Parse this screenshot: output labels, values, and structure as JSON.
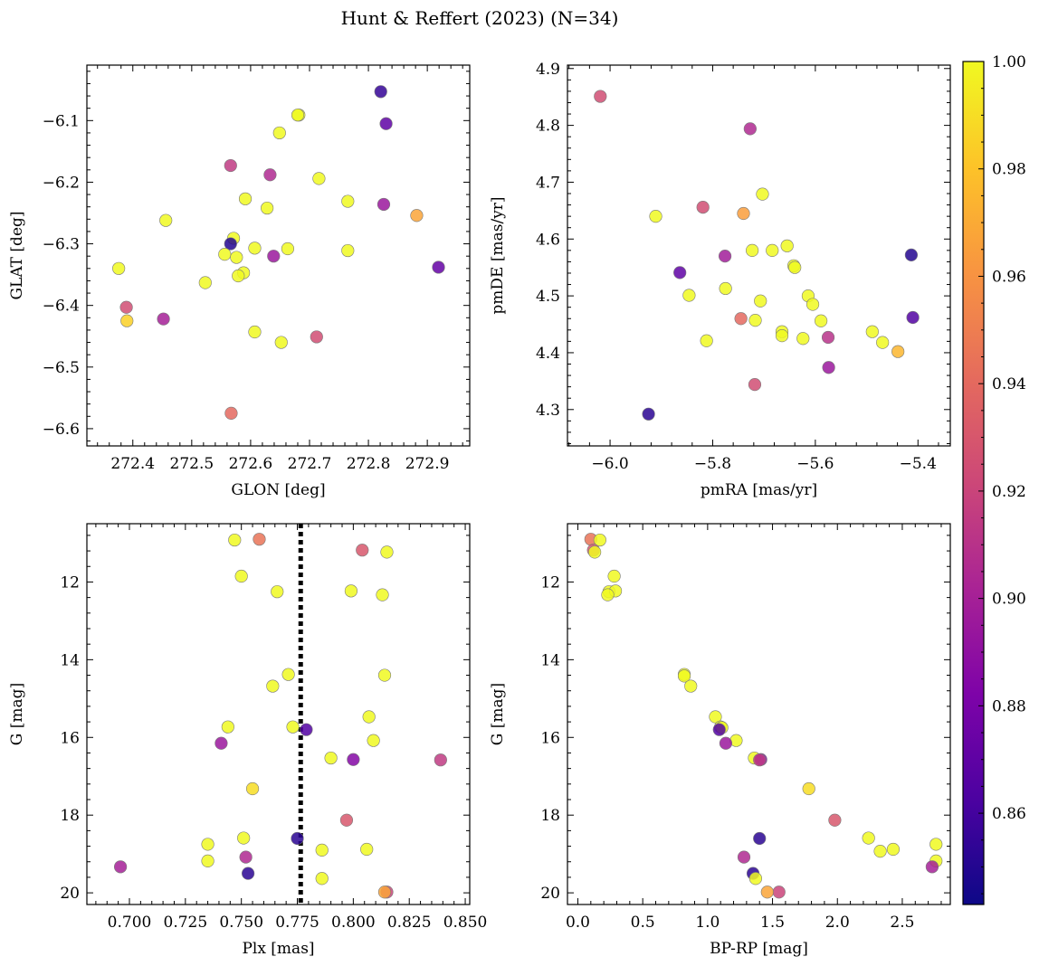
{
  "figure": {
    "title": "Hunt & Reffert (2023) (N=34)"
  },
  "colorbar": {
    "colormap": "plasma",
    "range": [
      0.843,
      1.0
    ],
    "ticks": [
      "0.86",
      "0.88",
      "0.90",
      "0.92",
      "0.94",
      "0.96",
      "0.98",
      "1.00"
    ],
    "tick_values": [
      0.86,
      0.88,
      0.9,
      0.92,
      0.94,
      0.96,
      0.98,
      1.0
    ]
  },
  "chart_data": [
    {
      "type": "scatter",
      "xlabel": "GLON [deg]",
      "ylabel": "GLAT [deg]",
      "xlim": [
        272.322,
        272.972
      ],
      "ylim": [
        -6.628,
        -6.01
      ],
      "invert_y": false,
      "xticks": [
        "272.4",
        "272.5",
        "272.6",
        "272.7",
        "272.8",
        "272.9"
      ],
      "xtick_values": [
        272.4,
        272.5,
        272.6,
        272.7,
        272.8,
        272.9
      ],
      "yticks": [
        "−6.6",
        "−6.5",
        "−6.4",
        "−6.3",
        "−6.2",
        "−6.1"
      ],
      "ytick_values": [
        -6.6,
        -6.5,
        -6.4,
        -6.3,
        -6.2,
        -6.1
      ],
      "points": [
        {
          "x": 272.821,
          "y": -6.053,
          "c": 0.855
        },
        {
          "x": 272.682,
          "y": -6.091,
          "c": 1.0
        },
        {
          "x": 272.83,
          "y": -6.105,
          "c": 0.87
        },
        {
          "x": 272.649,
          "y": -6.12,
          "c": 1.0
        },
        {
          "x": 272.566,
          "y": -6.173,
          "c": 0.915
        },
        {
          "x": 272.633,
          "y": -6.188,
          "c": 0.905
        },
        {
          "x": 272.716,
          "y": -6.194,
          "c": 1.0
        },
        {
          "x": 272.591,
          "y": -6.227,
          "c": 1.0
        },
        {
          "x": 272.765,
          "y": -6.231,
          "c": 1.0
        },
        {
          "x": 272.826,
          "y": -6.236,
          "c": 0.895
        },
        {
          "x": 272.628,
          "y": -6.242,
          "c": 1.0
        },
        {
          "x": 272.882,
          "y": -6.254,
          "c": 0.968
        },
        {
          "x": 272.456,
          "y": -6.262,
          "c": 1.0
        },
        {
          "x": 272.571,
          "y": -6.291,
          "c": 1.0
        },
        {
          "x": 272.566,
          "y": -6.3,
          "c": 0.85
        },
        {
          "x": 272.607,
          "y": -6.307,
          "c": 1.0
        },
        {
          "x": 272.663,
          "y": -6.308,
          "c": 1.0
        },
        {
          "x": 272.765,
          "y": -6.311,
          "c": 1.0
        },
        {
          "x": 272.556,
          "y": -6.317,
          "c": 1.0
        },
        {
          "x": 272.639,
          "y": -6.32,
          "c": 0.895
        },
        {
          "x": 272.576,
          "y": -6.322,
          "c": 1.0
        },
        {
          "x": 272.919,
          "y": -6.338,
          "c": 0.872
        },
        {
          "x": 272.376,
          "y": -6.34,
          "c": 1.0
        },
        {
          "x": 272.588,
          "y": -6.347,
          "c": 1.0
        },
        {
          "x": 272.579,
          "y": -6.352,
          "c": 1.0
        },
        {
          "x": 272.523,
          "y": -6.363,
          "c": 1.0
        },
        {
          "x": 272.389,
          "y": -6.403,
          "c": 0.925
        },
        {
          "x": 272.452,
          "y": -6.422,
          "c": 0.9
        },
        {
          "x": 272.39,
          "y": -6.425,
          "c": 0.985
        },
        {
          "x": 272.607,
          "y": -6.443,
          "c": 1.0
        },
        {
          "x": 272.712,
          "y": -6.451,
          "c": 0.925
        },
        {
          "x": 272.652,
          "y": -6.46,
          "c": 1.0
        },
        {
          "x": 272.567,
          "y": -6.575,
          "c": 0.94
        },
        {
          "x": 272.68,
          "y": -6.091,
          "c": 1.0
        }
      ]
    },
    {
      "type": "scatter",
      "xlabel": "pmRA [mas/yr]",
      "ylabel": "pmDE [mas/yr]",
      "xlim": [
        -6.083,
        -5.337
      ],
      "ylim": [
        4.236,
        4.906
      ],
      "invert_y": false,
      "xticks": [
        "−6.0",
        "−5.8",
        "−5.6",
        "−5.4"
      ],
      "xtick_values": [
        -6.0,
        -5.8,
        -5.6,
        -5.4
      ],
      "yticks": [
        "4.3",
        "4.4",
        "4.5",
        "4.6",
        "4.7",
        "4.8",
        "4.9"
      ],
      "ytick_values": [
        4.3,
        4.4,
        4.5,
        4.6,
        4.7,
        4.8,
        4.9
      ],
      "points": [
        {
          "x": -6.019,
          "y": 4.851,
          "c": 0.925
        },
        {
          "x": -5.727,
          "y": 4.794,
          "c": 0.905
        },
        {
          "x": -5.703,
          "y": 4.679,
          "c": 1.0
        },
        {
          "x": -5.819,
          "y": 4.656,
          "c": 0.925
        },
        {
          "x": -5.74,
          "y": 4.645,
          "c": 0.965
        },
        {
          "x": -5.911,
          "y": 4.64,
          "c": 1.0
        },
        {
          "x": -5.723,
          "y": 4.58,
          "c": 1.0
        },
        {
          "x": -5.684,
          "y": 4.58,
          "c": 1.0
        },
        {
          "x": -5.655,
          "y": 4.588,
          "c": 1.0
        },
        {
          "x": -5.413,
          "y": 4.572,
          "c": 0.85
        },
        {
          "x": -5.776,
          "y": 4.57,
          "c": 0.898
        },
        {
          "x": -5.642,
          "y": 4.553,
          "c": 1.0
        },
        {
          "x": -5.64,
          "y": 4.55,
          "c": 1.0
        },
        {
          "x": -5.864,
          "y": 4.541,
          "c": 0.87
        },
        {
          "x": -5.775,
          "y": 4.513,
          "c": 1.0
        },
        {
          "x": -5.846,
          "y": 4.501,
          "c": 1.0
        },
        {
          "x": -5.614,
          "y": 4.5,
          "c": 1.0
        },
        {
          "x": -5.707,
          "y": 4.491,
          "c": 1.0
        },
        {
          "x": -5.605,
          "y": 4.485,
          "c": 1.0
        },
        {
          "x": -5.41,
          "y": 4.462,
          "c": 0.865
        },
        {
          "x": -5.745,
          "y": 4.46,
          "c": 0.94
        },
        {
          "x": -5.717,
          "y": 4.457,
          "c": 1.0
        },
        {
          "x": -5.589,
          "y": 4.456,
          "c": 1.0
        },
        {
          "x": -5.665,
          "y": 4.437,
          "c": 1.0
        },
        {
          "x": -5.489,
          "y": 4.437,
          "c": 1.0
        },
        {
          "x": -5.665,
          "y": 4.43,
          "c": 1.0
        },
        {
          "x": -5.624,
          "y": 4.425,
          "c": 1.0
        },
        {
          "x": -5.575,
          "y": 4.427,
          "c": 0.91
        },
        {
          "x": -5.812,
          "y": 4.421,
          "c": 1.0
        },
        {
          "x": -5.469,
          "y": 4.418,
          "c": 1.0
        },
        {
          "x": -5.439,
          "y": 4.402,
          "c": 0.975
        },
        {
          "x": -5.574,
          "y": 4.374,
          "c": 0.895
        },
        {
          "x": -5.718,
          "y": 4.344,
          "c": 0.925
        },
        {
          "x": -5.925,
          "y": 4.292,
          "c": 0.852
        }
      ]
    },
    {
      "type": "scatter",
      "xlabel": "Plx [mas]",
      "ylabel": "G [mag]",
      "xlim": [
        0.681,
        0.852
      ],
      "ylim": [
        20.3,
        10.5
      ],
      "invert_y": true,
      "xticks": [
        "0.700",
        "0.725",
        "0.750",
        "0.775",
        "0.800",
        "0.825",
        "0.850"
      ],
      "xtick_values": [
        0.7,
        0.725,
        0.75,
        0.775,
        0.8,
        0.825,
        0.85
      ],
      "yticks": [
        "12",
        "14",
        "16",
        "18",
        "20"
      ],
      "ytick_values": [
        12,
        14,
        16,
        18,
        20
      ],
      "vline": {
        "x": 0.7765,
        "style": "dotted",
        "color": "#000000"
      },
      "points": [
        {
          "x": 0.747,
          "y": 10.92,
          "c": 1.0
        },
        {
          "x": 0.758,
          "y": 10.9,
          "c": 0.945
        },
        {
          "x": 0.804,
          "y": 11.18,
          "c": 0.93
        },
        {
          "x": 0.815,
          "y": 11.23,
          "c": 1.0
        },
        {
          "x": 0.75,
          "y": 11.85,
          "c": 1.0
        },
        {
          "x": 0.766,
          "y": 12.25,
          "c": 1.0
        },
        {
          "x": 0.799,
          "y": 12.23,
          "c": 1.0
        },
        {
          "x": 0.813,
          "y": 12.33,
          "c": 1.0
        },
        {
          "x": 0.771,
          "y": 14.38,
          "c": 1.0
        },
        {
          "x": 0.814,
          "y": 14.4,
          "c": 1.0
        },
        {
          "x": 0.764,
          "y": 14.68,
          "c": 1.0
        },
        {
          "x": 0.807,
          "y": 15.47,
          "c": 1.0
        },
        {
          "x": 0.744,
          "y": 15.73,
          "c": 1.0
        },
        {
          "x": 0.773,
          "y": 15.73,
          "c": 1.0
        },
        {
          "x": 0.779,
          "y": 15.8,
          "c": 0.865
        },
        {
          "x": 0.809,
          "y": 16.08,
          "c": 1.0
        },
        {
          "x": 0.741,
          "y": 16.15,
          "c": 0.895
        },
        {
          "x": 0.79,
          "y": 16.53,
          "c": 1.0
        },
        {
          "x": 0.8,
          "y": 16.57,
          "c": 0.885
        },
        {
          "x": 0.839,
          "y": 16.58,
          "c": 0.915
        },
        {
          "x": 0.755,
          "y": 17.32,
          "c": 0.99
        },
        {
          "x": 0.797,
          "y": 18.13,
          "c": 0.93
        },
        {
          "x": 0.751,
          "y": 18.59,
          "c": 1.0
        },
        {
          "x": 0.775,
          "y": 18.6,
          "c": 0.852
        },
        {
          "x": 0.735,
          "y": 18.75,
          "c": 1.0
        },
        {
          "x": 0.786,
          "y": 18.9,
          "c": 1.0
        },
        {
          "x": 0.806,
          "y": 18.88,
          "c": 1.0
        },
        {
          "x": 0.752,
          "y": 19.08,
          "c": 0.905
        },
        {
          "x": 0.735,
          "y": 19.18,
          "c": 1.0
        },
        {
          "x": 0.696,
          "y": 19.33,
          "c": 0.9
        },
        {
          "x": 0.753,
          "y": 19.5,
          "c": 0.852
        },
        {
          "x": 0.786,
          "y": 19.63,
          "c": 1.0
        },
        {
          "x": 0.815,
          "y": 19.98,
          "c": 0.92
        },
        {
          "x": 0.814,
          "y": 19.98,
          "c": 0.968
        }
      ]
    },
    {
      "type": "scatter",
      "xlabel": "BP-RP [mag]",
      "ylabel": "G [mag]",
      "xlim": [
        -0.08,
        2.87
      ],
      "ylim": [
        20.3,
        10.5
      ],
      "invert_y": true,
      "xticks": [
        "0.0",
        "0.5",
        "1.0",
        "1.5",
        "2.0",
        "2.5"
      ],
      "xtick_values": [
        0.0,
        0.5,
        1.0,
        1.5,
        2.0,
        2.5
      ],
      "yticks": [
        "12",
        "14",
        "16",
        "18",
        "20"
      ],
      "ytick_values": [
        12,
        14,
        16,
        18,
        20
      ],
      "points": [
        {
          "x": 0.1,
          "y": 10.9,
          "c": 0.945
        },
        {
          "x": 0.17,
          "y": 10.92,
          "c": 1.0
        },
        {
          "x": 0.12,
          "y": 11.18,
          "c": 0.93
        },
        {
          "x": 0.13,
          "y": 11.23,
          "c": 1.0
        },
        {
          "x": 0.28,
          "y": 11.85,
          "c": 1.0
        },
        {
          "x": 0.24,
          "y": 12.25,
          "c": 1.0
        },
        {
          "x": 0.29,
          "y": 12.23,
          "c": 1.0
        },
        {
          "x": 0.23,
          "y": 12.33,
          "c": 1.0
        },
        {
          "x": 0.82,
          "y": 14.38,
          "c": 1.0
        },
        {
          "x": 0.82,
          "y": 14.42,
          "c": 1.0
        },
        {
          "x": 0.87,
          "y": 14.68,
          "c": 1.0
        },
        {
          "x": 1.06,
          "y": 15.47,
          "c": 1.0
        },
        {
          "x": 1.1,
          "y": 15.73,
          "c": 1.0
        },
        {
          "x": 1.11,
          "y": 15.75,
          "c": 1.0
        },
        {
          "x": 1.09,
          "y": 15.8,
          "c": 0.865
        },
        {
          "x": 1.22,
          "y": 16.08,
          "c": 1.0
        },
        {
          "x": 1.14,
          "y": 16.15,
          "c": 0.895
        },
        {
          "x": 1.36,
          "y": 16.53,
          "c": 1.0
        },
        {
          "x": 1.41,
          "y": 16.57,
          "c": 0.885
        },
        {
          "x": 1.4,
          "y": 16.58,
          "c": 0.915
        },
        {
          "x": 1.78,
          "y": 17.32,
          "c": 0.99
        },
        {
          "x": 1.98,
          "y": 18.13,
          "c": 0.93
        },
        {
          "x": 2.24,
          "y": 18.59,
          "c": 1.0
        },
        {
          "x": 1.4,
          "y": 18.6,
          "c": 0.852
        },
        {
          "x": 2.76,
          "y": 18.75,
          "c": 1.0
        },
        {
          "x": 2.33,
          "y": 18.93,
          "c": 1.0
        },
        {
          "x": 2.43,
          "y": 18.88,
          "c": 1.0
        },
        {
          "x": 1.28,
          "y": 19.08,
          "c": 0.905
        },
        {
          "x": 2.76,
          "y": 19.18,
          "c": 1.0
        },
        {
          "x": 2.73,
          "y": 19.33,
          "c": 0.9
        },
        {
          "x": 1.35,
          "y": 19.5,
          "c": 0.852
        },
        {
          "x": 1.37,
          "y": 19.63,
          "c": 1.0
        },
        {
          "x": 1.55,
          "y": 19.98,
          "c": 0.92
        },
        {
          "x": 1.46,
          "y": 19.98,
          "c": 0.968
        }
      ]
    }
  ]
}
